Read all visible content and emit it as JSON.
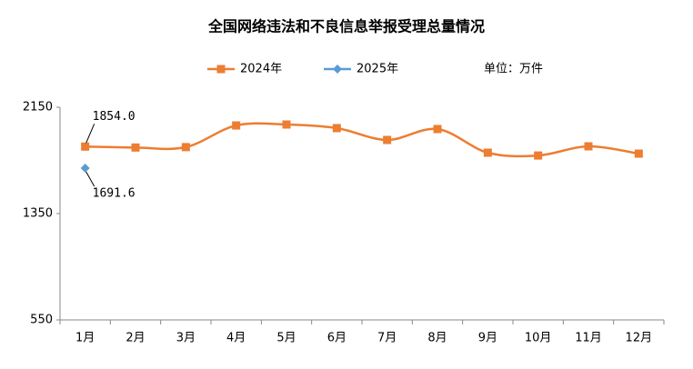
{
  "chart_data": {
    "type": "line",
    "title": "全国网络违法和不良信息举报受理总量情况",
    "annotation": "单位：万件",
    "categories": [
      "1月",
      "2月",
      "3月",
      "4月",
      "5月",
      "6月",
      "7月",
      "8月",
      "9月",
      "10月",
      "11月",
      "12月"
    ],
    "series": [
      {
        "name": "2024年",
        "color": "#ED7D31",
        "marker": "square",
        "values": [
          1854.0,
          1847,
          1850,
          2013,
          2020,
          1993,
          1904,
          1986,
          1808,
          1787,
          1856,
          1801
        ],
        "value_labels": [
          "1854.0",
          null,
          null,
          null,
          null,
          null,
          null,
          null,
          null,
          null,
          null,
          null
        ]
      },
      {
        "name": "2025年",
        "color": "#5B9BD5",
        "marker": "diamond",
        "values": [
          1691.6,
          null,
          null,
          null,
          null,
          null,
          null,
          null,
          null,
          null,
          null,
          null
        ]
      }
    ],
    "ylim": [
      550,
      2150
    ],
    "yticks": [
      550,
      1350,
      2150
    ],
    "grid": false,
    "legend": "top"
  }
}
